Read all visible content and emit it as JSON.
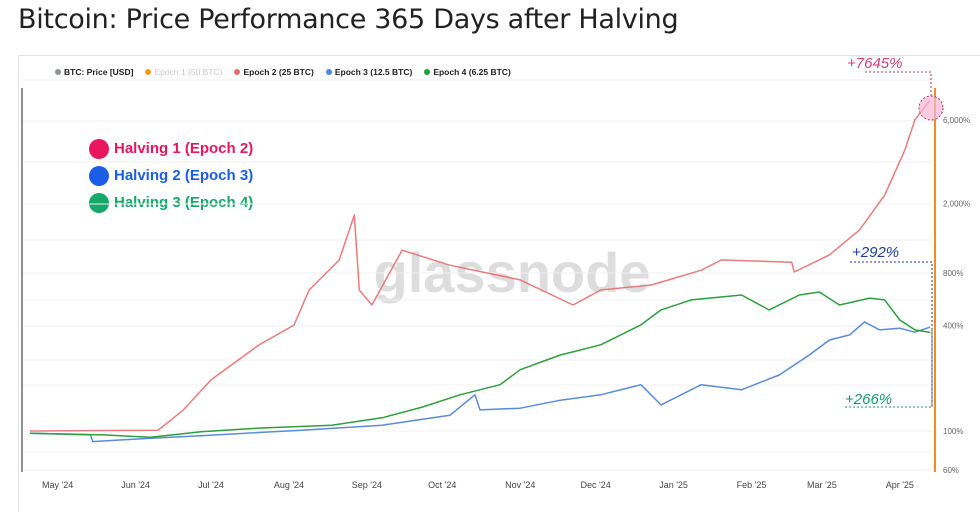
{
  "title": "Bitcoin: Price Performance 365 Days after Halving",
  "legend": [
    {
      "label": "BTC: Price [USD]",
      "color": "#8a9499",
      "muted": false
    },
    {
      "label": "Epoch 1 (50 BTC)",
      "color": "#f39c12",
      "muted": true
    },
    {
      "label": "Epoch 2 (25 BTC)",
      "color": "#e86b6b",
      "muted": false
    },
    {
      "label": "Epoch 3 (12.5 BTC)",
      "color": "#4a86e8",
      "muted": false
    },
    {
      "label": "Epoch 4 (6.25 BTC)",
      "color": "#22a03a",
      "muted": false
    }
  ],
  "halvings": [
    {
      "label": "Halving 1 (Epoch 2)",
      "color": "#e8175d"
    },
    {
      "label": "Halving 2 (Epoch 3)",
      "color": "#1a5ee8"
    },
    {
      "label": "Halving 3 (Epoch 4)",
      "color": "#14a86a"
    }
  ],
  "watermark": "glassnode",
  "annotations": {
    "epoch2": "+7645%",
    "epoch3": "+292%",
    "epoch4": "+266%"
  },
  "chart_data": {
    "type": "line",
    "title": "Bitcoin: Price Performance 365 Days after Halving",
    "y_scale": "log",
    "ylim": [
      60,
      9000
    ],
    "y_ticks": [
      {
        "v": 60,
        "label": "60%"
      },
      {
        "v": 100,
        "label": "100%"
      },
      {
        "v": 400,
        "label": "400%"
      },
      {
        "v": 800,
        "label": "800%"
      },
      {
        "v": 2000,
        "label": "2,000%"
      },
      {
        "v": 6000,
        "label": "6,000%"
      }
    ],
    "x_range": [
      "2024-04-20",
      "2025-04-13"
    ],
    "x_ticks": [
      {
        "d": "2024-05-01",
        "label": "May '24"
      },
      {
        "d": "2024-06-01",
        "label": "Jun '24"
      },
      {
        "d": "2024-07-01",
        "label": "Jul '24"
      },
      {
        "d": "2024-08-01",
        "label": "Aug '24"
      },
      {
        "d": "2024-09-01",
        "label": "Sep '24"
      },
      {
        "d": "2024-10-01",
        "label": "Oct '24"
      },
      {
        "d": "2024-11-01",
        "label": "Nov '24"
      },
      {
        "d": "2024-12-01",
        "label": "Dec '24"
      },
      {
        "d": "2025-01-01",
        "label": "Jan '25"
      },
      {
        "d": "2025-02-01",
        "label": "Feb '25"
      },
      {
        "d": "2025-03-01",
        "label": "Mar '25"
      },
      {
        "d": "2025-04-01",
        "label": "Apr '25"
      }
    ],
    "grid": true,
    "legend_position": "top-left",
    "series": [
      {
        "name": "Epoch 2 (25 BTC)",
        "color": "#e97b7b",
        "points": [
          [
            "2024-04-20",
            100
          ],
          [
            "2024-06-10",
            101
          ],
          [
            "2024-06-20",
            132
          ],
          [
            "2024-07-01",
            196
          ],
          [
            "2024-07-20",
            310
          ],
          [
            "2024-08-03",
            403
          ],
          [
            "2024-08-09",
            639
          ],
          [
            "2024-08-21",
            949
          ],
          [
            "2024-08-27",
            1710
          ],
          [
            "2024-08-29",
            639
          ],
          [
            "2024-09-03",
            525
          ],
          [
            "2024-09-15",
            1080
          ],
          [
            "2024-10-04",
            886
          ],
          [
            "2024-11-01",
            730
          ],
          [
            "2024-11-22",
            525
          ],
          [
            "2024-12-03",
            639
          ],
          [
            "2024-12-23",
            682
          ],
          [
            "2025-01-12",
            830
          ],
          [
            "2025-01-20",
            949
          ],
          [
            "2025-02-17",
            922
          ],
          [
            "2025-02-18",
            810
          ],
          [
            "2025-03-04",
            1014
          ],
          [
            "2025-03-16",
            1410
          ],
          [
            "2025-03-26",
            2230
          ],
          [
            "2025-04-03",
            4040
          ],
          [
            "2025-04-07",
            6000
          ],
          [
            "2025-04-13",
            7745
          ]
        ]
      },
      {
        "name": "Epoch 3 (12.5 BTC)",
        "color": "#5b8bd8",
        "points": [
          [
            "2024-04-20",
            97
          ],
          [
            "2024-05-14",
            95
          ],
          [
            "2024-05-15",
            87
          ],
          [
            "2024-06-07",
            91
          ],
          [
            "2024-06-27",
            94
          ],
          [
            "2024-08-06",
            101
          ],
          [
            "2024-09-07",
            108
          ],
          [
            "2024-10-04",
            123
          ],
          [
            "2024-10-14",
            161
          ],
          [
            "2024-10-16",
            132
          ],
          [
            "2024-11-01",
            135
          ],
          [
            "2024-11-17",
            150
          ],
          [
            "2024-12-03",
            161
          ],
          [
            "2024-12-19",
            184
          ],
          [
            "2024-12-27",
            141
          ],
          [
            "2025-01-12",
            184
          ],
          [
            "2025-01-28",
            172
          ],
          [
            "2025-02-12",
            209
          ],
          [
            "2025-02-24",
            272
          ],
          [
            "2025-03-04",
            331
          ],
          [
            "2025-03-12",
            354
          ],
          [
            "2025-03-18",
            420
          ],
          [
            "2025-03-24",
            378
          ],
          [
            "2025-04-01",
            387
          ],
          [
            "2025-04-07",
            367
          ],
          [
            "2025-04-13",
            392
          ]
        ]
      },
      {
        "name": "Epoch 4 (6.25 BTC)",
        "color": "#2e9e3e",
        "points": [
          [
            "2024-04-20",
            97
          ],
          [
            "2024-05-19",
            95
          ],
          [
            "2024-06-07",
            92
          ],
          [
            "2024-06-27",
            99
          ],
          [
            "2024-07-21",
            104
          ],
          [
            "2024-08-18",
            108
          ],
          [
            "2024-09-07",
            119
          ],
          [
            "2024-09-23",
            137
          ],
          [
            "2024-10-08",
            161
          ],
          [
            "2024-10-24",
            184
          ],
          [
            "2024-11-01",
            224
          ],
          [
            "2024-11-17",
            272
          ],
          [
            "2024-12-03",
            311
          ],
          [
            "2024-12-19",
            404
          ],
          [
            "2024-12-27",
            492
          ],
          [
            "2025-01-08",
            561
          ],
          [
            "2025-01-28",
            599
          ],
          [
            "2025-02-08",
            492
          ],
          [
            "2025-02-20",
            599
          ],
          [
            "2025-02-28",
            623
          ],
          [
            "2025-03-08",
            525
          ],
          [
            "2025-03-20",
            575
          ],
          [
            "2025-03-26",
            561
          ],
          [
            "2025-04-01",
            431
          ],
          [
            "2025-04-07",
            378
          ],
          [
            "2025-04-13",
            366
          ]
        ]
      }
    ]
  }
}
